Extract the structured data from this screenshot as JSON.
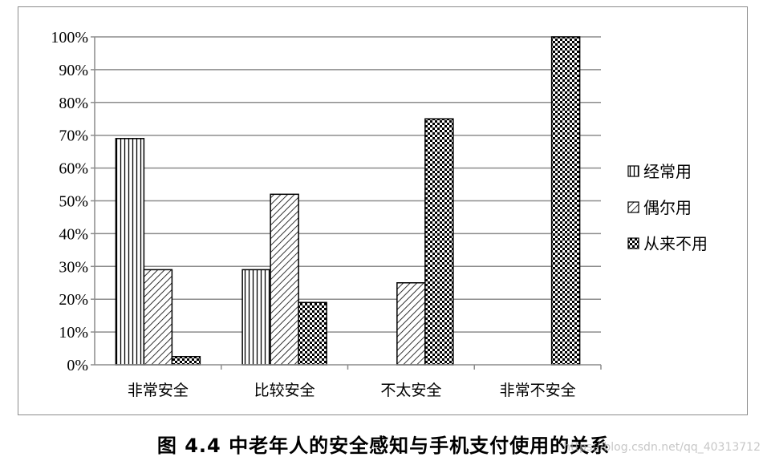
{
  "chart_data": {
    "type": "bar",
    "categories": [
      "非常安全",
      "比较安全",
      "不太安全",
      "非常不安全"
    ],
    "series": [
      {
        "name": "经常用",
        "pattern": "vertical-lines",
        "values": [
          69,
          29,
          0,
          0
        ]
      },
      {
        "name": "偶尔用",
        "pattern": "diagonal-lines",
        "values": [
          29,
          52,
          25,
          0
        ]
      },
      {
        "name": "从来不用",
        "pattern": "checkerboard",
        "values": [
          2.5,
          19,
          75,
          100
        ]
      }
    ],
    "ylim": [
      0,
      100
    ],
    "yticks": [
      "0%",
      "10%",
      "20%",
      "30%",
      "40%",
      "50%",
      "60%",
      "70%",
      "80%",
      "90%",
      "100%"
    ],
    "grid": true,
    "legend_position": "right",
    "title": "",
    "xlabel": "",
    "ylabel": ""
  },
  "caption": "图 4.4  中老年人的安全感知与手机支付使用的关系",
  "watermark": "https://blog.csdn.net/qq_40313712",
  "colors": {
    "bar_stroke": "#000000",
    "grid": "#8c8c8c"
  }
}
